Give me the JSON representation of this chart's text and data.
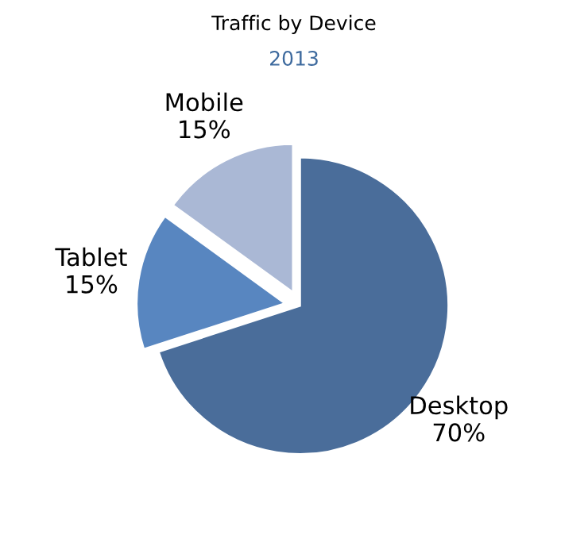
{
  "chart_data": {
    "type": "pie",
    "title": "Traffic by Device",
    "subtitle": "2013",
    "categories": [
      "Desktop",
      "Tablet",
      "Mobile"
    ],
    "values": [
      70,
      15,
      15
    ],
    "value_labels": [
      "70%",
      "15%",
      "15%"
    ],
    "colors": [
      "#4a6d9a",
      "#5886c0",
      "#aab8d5"
    ],
    "legend": false
  }
}
